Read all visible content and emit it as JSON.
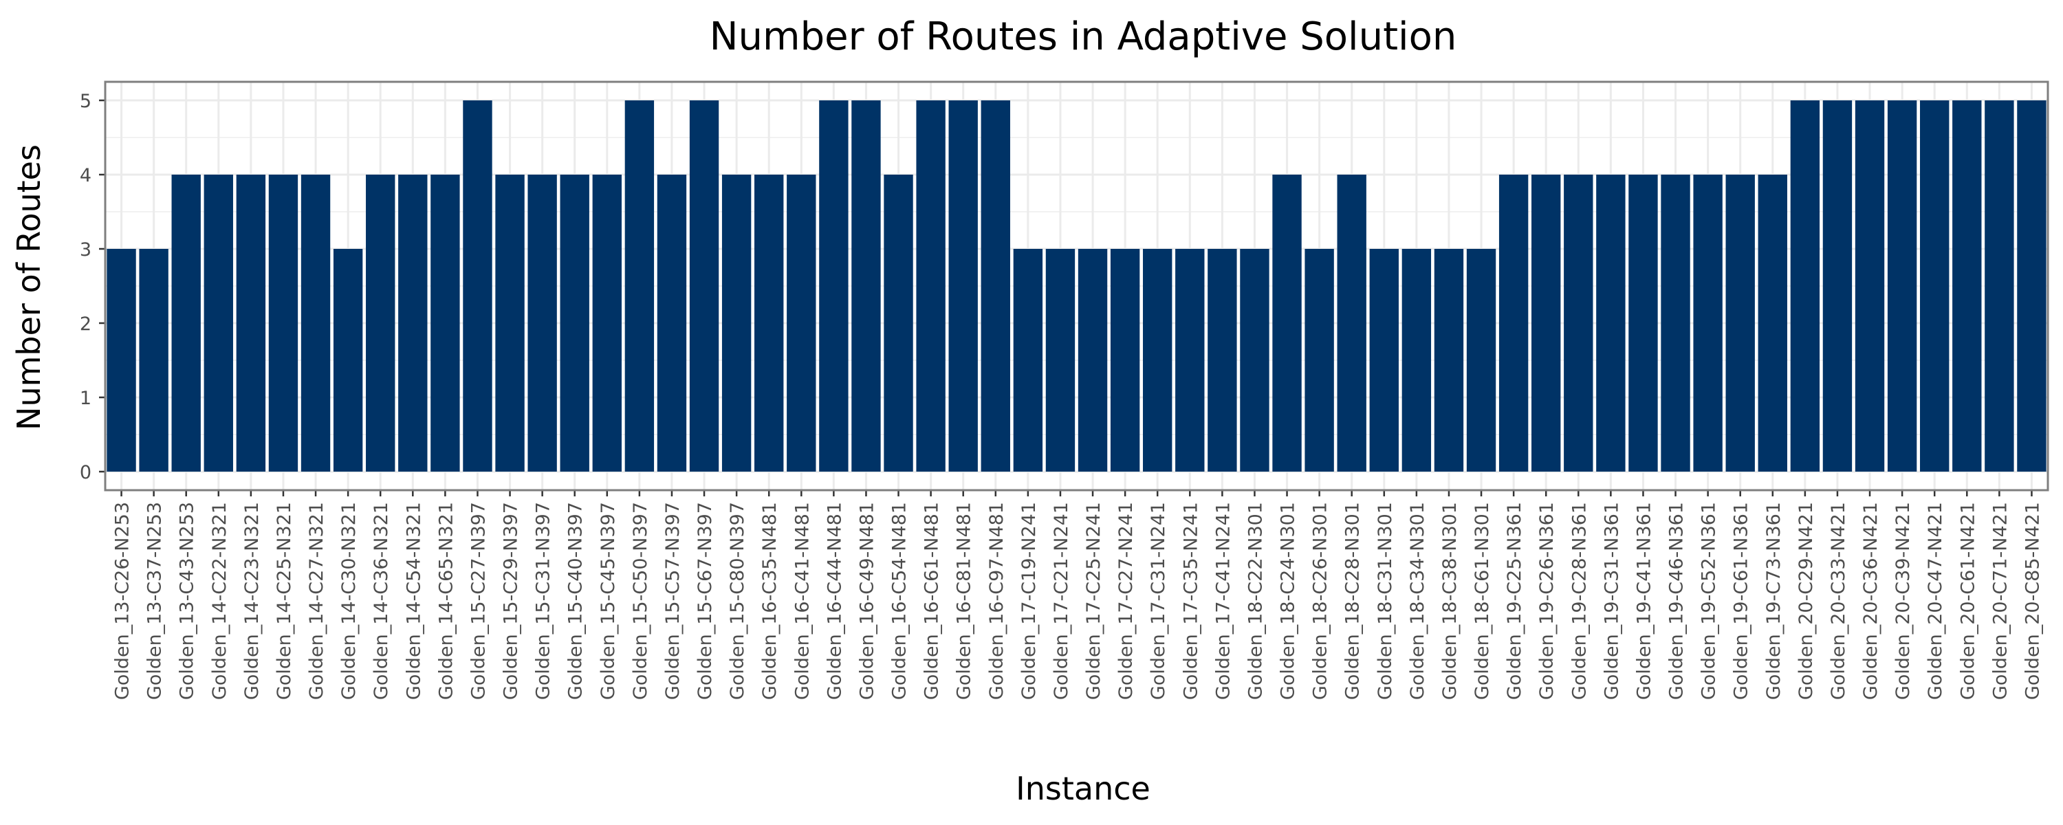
{
  "chart_data": {
    "type": "bar",
    "title": "Number of Routes in Adaptive Solution",
    "xlabel": "Instance",
    "ylabel": "Number of Routes",
    "ylim": [
      -0.25,
      5.25
    ],
    "yticks": [
      0,
      1,
      2,
      3,
      4,
      5
    ],
    "grid": true,
    "bar_color": "#003366",
    "categories": [
      "Golden_13-C26-N253",
      "Golden_13-C37-N253",
      "Golden_13-C43-N253",
      "Golden_14-C22-N321",
      "Golden_14-C23-N321",
      "Golden_14-C25-N321",
      "Golden_14-C27-N321",
      "Golden_14-C30-N321",
      "Golden_14-C36-N321",
      "Golden_14-C54-N321",
      "Golden_14-C65-N321",
      "Golden_15-C27-N397",
      "Golden_15-C29-N397",
      "Golden_15-C31-N397",
      "Golden_15-C40-N397",
      "Golden_15-C45-N397",
      "Golden_15-C50-N397",
      "Golden_15-C57-N397",
      "Golden_15-C67-N397",
      "Golden_15-C80-N397",
      "Golden_16-C35-N481",
      "Golden_16-C41-N481",
      "Golden_16-C44-N481",
      "Golden_16-C49-N481",
      "Golden_16-C54-N481",
      "Golden_16-C61-N481",
      "Golden_16-C81-N481",
      "Golden_16-C97-N481",
      "Golden_17-C19-N241",
      "Golden_17-C21-N241",
      "Golden_17-C25-N241",
      "Golden_17-C27-N241",
      "Golden_17-C31-N241",
      "Golden_17-C35-N241",
      "Golden_17-C41-N241",
      "Golden_18-C22-N301",
      "Golden_18-C24-N301",
      "Golden_18-C26-N301",
      "Golden_18-C28-N301",
      "Golden_18-C31-N301",
      "Golden_18-C34-N301",
      "Golden_18-C38-N301",
      "Golden_18-C61-N301",
      "Golden_19-C25-N361",
      "Golden_19-C26-N361",
      "Golden_19-C28-N361",
      "Golden_19-C31-N361",
      "Golden_19-C41-N361",
      "Golden_19-C46-N361",
      "Golden_19-C52-N361",
      "Golden_19-C61-N361",
      "Golden_19-C73-N361",
      "Golden_20-C29-N421",
      "Golden_20-C33-N421",
      "Golden_20-C36-N421",
      "Golden_20-C39-N421",
      "Golden_20-C47-N421",
      "Golden_20-C61-N421",
      "Golden_20-C71-N421",
      "Golden_20-C85-N421"
    ],
    "values": [
      3,
      3,
      4,
      4,
      4,
      4,
      4,
      3,
      4,
      4,
      4,
      5,
      4,
      4,
      4,
      4,
      5,
      4,
      5,
      4,
      4,
      4,
      5,
      5,
      4,
      5,
      5,
      5,
      3,
      3,
      3,
      3,
      3,
      3,
      3,
      3,
      4,
      3,
      4,
      3,
      3,
      3,
      3,
      4,
      4,
      4,
      4,
      4,
      4,
      4,
      4,
      4,
      5,
      5,
      5,
      5,
      5,
      5,
      5,
      5
    ]
  }
}
